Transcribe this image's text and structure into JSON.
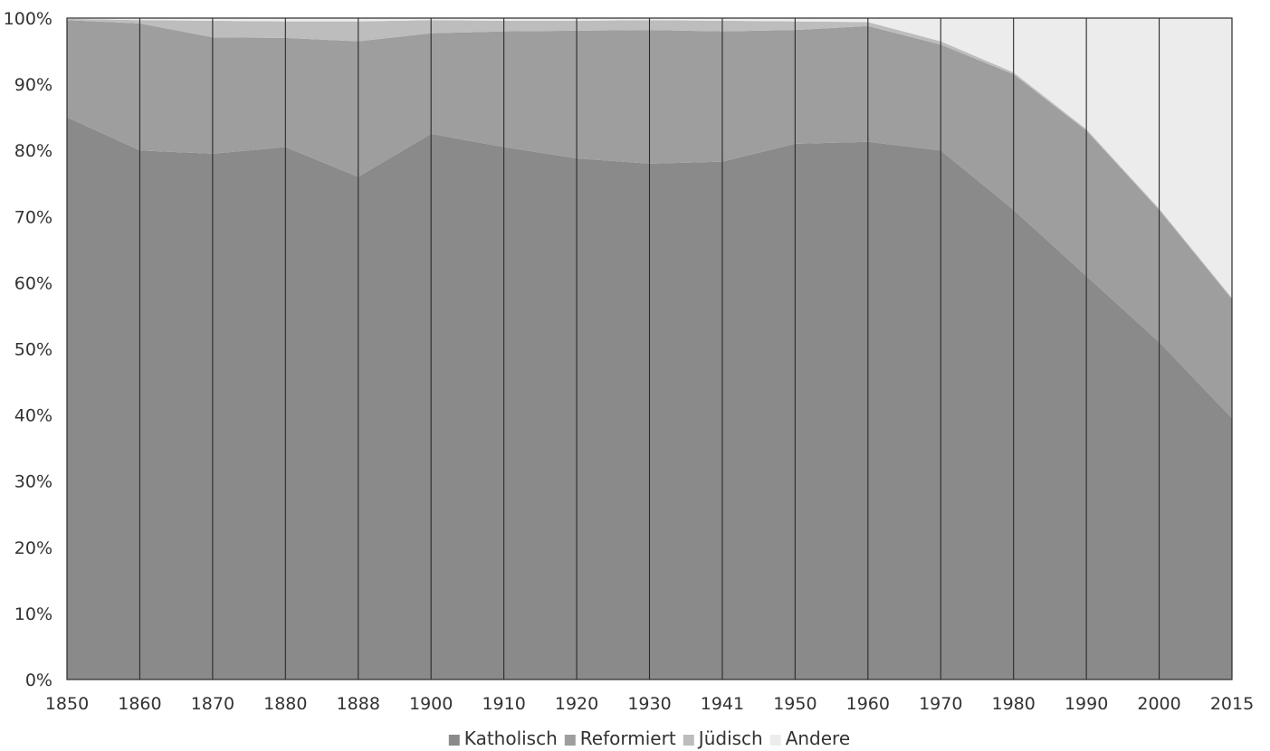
{
  "chart_data": {
    "type": "area",
    "stacked": true,
    "percent": true,
    "x": [
      "1850",
      "1860",
      "1870",
      "1880",
      "1888",
      "1900",
      "1910",
      "1920",
      "1930",
      "1941",
      "1950",
      "1960",
      "1970",
      "1980",
      "1990",
      "2000",
      "2015"
    ],
    "series": [
      {
        "name": "Katholisch",
        "color": "#8a8a8a",
        "values": [
          85,
          80,
          79.5,
          80.5,
          76,
          82.5,
          80.5,
          78.8,
          78,
          78.3,
          81,
          81.3,
          80,
          71,
          61,
          51,
          39.5
        ]
      },
      {
        "name": "Reformiert",
        "color": "#9e9e9e",
        "values": [
          14.7,
          19.2,
          17.6,
          16.5,
          20.5,
          15.2,
          17.5,
          19.3,
          20.2,
          19.7,
          17.2,
          17.5,
          16,
          20.5,
          22,
          20,
          18
        ]
      },
      {
        "name": "Jüdisch",
        "color": "#bdbdbd",
        "values": [
          0.2,
          0.5,
          2.5,
          2.5,
          3,
          2,
          1.6,
          1.5,
          1.5,
          1.6,
          1.3,
          0.6,
          0.5,
          0.3,
          0.2,
          0.2,
          0.2
        ]
      },
      {
        "name": "Andere",
        "color": "#ececec",
        "values": [
          0.1,
          0.3,
          0.4,
          0.5,
          0.5,
          0.3,
          0.4,
          0.4,
          0.3,
          0.4,
          0.5,
          0.6,
          3.5,
          8.2,
          16.8,
          28.8,
          42.3
        ]
      }
    ],
    "y_ticks": [
      "0%",
      "10%",
      "20%",
      "30%",
      "40%",
      "50%",
      "60%",
      "70%",
      "80%",
      "90%",
      "100%"
    ],
    "ylim": [
      0,
      100
    ],
    "grid": "vertical",
    "legend_position": "bottom-center",
    "title": "",
    "xlabel": "",
    "ylabel": ""
  }
}
